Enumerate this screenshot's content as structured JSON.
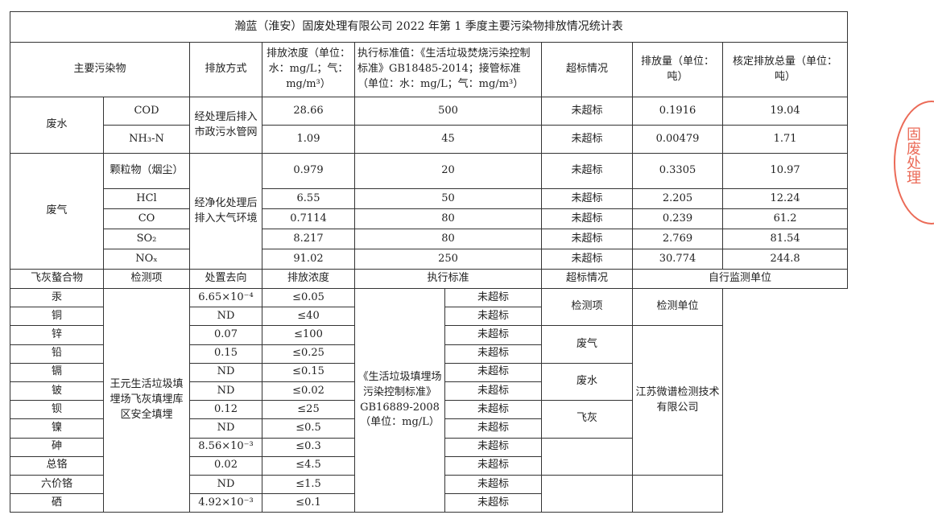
{
  "title": "瀚蓝（淮安）固废处理有限公司 2022 年第 1 季度主要污染物排放情况统计表",
  "header": {
    "pollutant": "主要污染物",
    "method": "排放方式",
    "concentration": "排放浓度（单位：水：mg/L；气：mg/m³）",
    "standard": "执行标准值：《生活垃圾焚烧污染控制标准》GB18485-2014；接管标准（单位：水：mg/L；气：mg/m³）",
    "exceed": "超标情况",
    "amount": "排放量（单位：吨）",
    "total": "核定排放总量（单位：吨）"
  },
  "wastewater": {
    "category": "废水",
    "method": "经处理后排入市政污水管网",
    "rows": [
      {
        "name": "COD",
        "conc": "28.66",
        "std": "500",
        "exceed": "未超标",
        "amount": "0.1916",
        "total": "19.04"
      },
      {
        "name": "NH₃-N",
        "conc": "1.09",
        "std": "45",
        "exceed": "未超标",
        "amount": "0.00479",
        "total": "1.71"
      }
    ]
  },
  "exhaust": {
    "category": "废气",
    "method": "经净化处理后排入大气环境",
    "rows": [
      {
        "name": "颗粒物（烟尘）",
        "conc": "0.979",
        "std": "20",
        "exceed": "未超标",
        "amount": "0.3305",
        "total": "10.97"
      },
      {
        "name": "HCl",
        "conc": "6.55",
        "std": "50",
        "exceed": "未超标",
        "amount": "2.205",
        "total": "12.24"
      },
      {
        "name": "CO",
        "conc": "0.7114",
        "std": "80",
        "exceed": "未超标",
        "amount": "0.239",
        "total": "61.2"
      },
      {
        "name": "SO₂",
        "conc": "8.217",
        "std": "80",
        "exceed": "未超标",
        "amount": "2.769",
        "total": "81.54"
      },
      {
        "name": "NOₓ",
        "conc": "91.02",
        "std": "250",
        "exceed": "未超标",
        "amount": "30.774",
        "total": "244.8"
      }
    ]
  },
  "flyash": {
    "category": "飞灰螯合物",
    "header": {
      "item": "检测项",
      "destination": "处置去向",
      "conc": "排放浓度",
      "standard": "执行标准",
      "exceed": "超标情况",
      "monitor": "自行监测单位"
    },
    "destination": "王元生活垃圾填埋场飞灰填埋库区安全填埋",
    "standard_name": "《生活垃圾填埋场污染控制标准》GB16889-2008（单位：mg/L）",
    "rows": [
      {
        "name": "汞",
        "conc": "6.65×10⁻⁴",
        "limit": "≤0.05",
        "exceed": "未超标"
      },
      {
        "name": "铜",
        "conc": "ND",
        "limit": "≤40",
        "exceed": "未超标"
      },
      {
        "name": "锌",
        "conc": "0.07",
        "limit": "≤100",
        "exceed": "未超标"
      },
      {
        "name": "铅",
        "conc": "0.15",
        "limit": "≤0.25",
        "exceed": "未超标"
      },
      {
        "name": "镉",
        "conc": "ND",
        "limit": "≤0.15",
        "exceed": "未超标"
      },
      {
        "name": "铍",
        "conc": "ND",
        "limit": "≤0.02",
        "exceed": "未超标"
      },
      {
        "name": "钡",
        "conc": "0.12",
        "limit": "≤25",
        "exceed": "未超标"
      },
      {
        "name": "镍",
        "conc": "ND",
        "limit": "≤0.5",
        "exceed": "未超标"
      },
      {
        "name": "砷",
        "conc": "8.56×10⁻³",
        "limit": "≤0.3",
        "exceed": "未超标"
      },
      {
        "name": "总铬",
        "conc": "0.02",
        "limit": "≤4.5",
        "exceed": "未超标"
      },
      {
        "name": "六价铬",
        "conc": "ND",
        "limit": "≤1.5",
        "exceed": "未超标"
      },
      {
        "name": "硒",
        "conc": "4.92×10⁻³",
        "limit": "≤0.1",
        "exceed": "未超标"
      }
    ],
    "monitor": {
      "item_header": "检测项",
      "unit_header": "检测单位",
      "items": [
        "废气",
        "废水",
        "飞灰"
      ],
      "unit": "江苏微谱检测技术有限公司"
    }
  },
  "stamp": {
    "color": "#e8513a",
    "text": "固废处理"
  }
}
